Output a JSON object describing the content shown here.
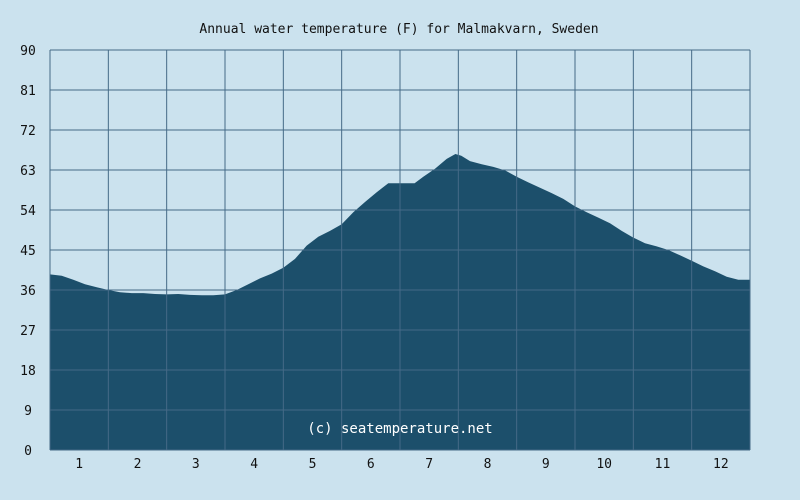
{
  "chart_data": {
    "type": "area",
    "title": "Annual water temperature (F) for Malmakvarn, Sweden",
    "xlabel": "",
    "ylabel": "",
    "categories": [
      "1",
      "2",
      "3",
      "4",
      "5",
      "6",
      "7",
      "8",
      "9",
      "10",
      "11",
      "12"
    ],
    "y_ticks": [
      "0",
      "9",
      "18",
      "27",
      "36",
      "45",
      "54",
      "63",
      "72",
      "81",
      "90"
    ],
    "ylim": [
      0,
      90
    ],
    "xlim": [
      0.5,
      12.5
    ],
    "grid": true,
    "series": [
      {
        "x": [
          0.5,
          0.7,
          0.9,
          1.1,
          1.3,
          1.5,
          1.7,
          1.9,
          2.1,
          2.3,
          2.5,
          2.7,
          2.9,
          3.1,
          3.3,
          3.5,
          3.7,
          3.9,
          4.1,
          4.3,
          4.5,
          4.7,
          4.9,
          5.1,
          5.3,
          5.5,
          5.7,
          5.9,
          6.1,
          6.3,
          6.45,
          6.75,
          6.9,
          7.1,
          7.3,
          7.45,
          7.55,
          7.7,
          7.9,
          8.1,
          8.3,
          8.5,
          8.7,
          8.9,
          9.1,
          9.3,
          9.5,
          9.7,
          9.9,
          10.1,
          10.3,
          10.5,
          10.7,
          10.9,
          11.1,
          11.3,
          11.5,
          11.7,
          11.9,
          12.1,
          12.3,
          12.5
        ],
        "values": [
          39.5,
          39.2,
          38.3,
          37.3,
          36.6,
          36.0,
          35.5,
          35.3,
          35.3,
          35.1,
          35.0,
          35.1,
          34.9,
          34.8,
          34.8,
          35.0,
          36.0,
          37.3,
          38.6,
          39.7,
          41.0,
          43.0,
          46.0,
          48.0,
          49.3,
          50.8,
          53.5,
          55.8,
          58.0,
          60.0,
          60.0,
          60.0,
          61.5,
          63.3,
          65.5,
          66.6,
          66.2,
          65.0,
          64.3,
          63.7,
          62.9,
          61.5,
          60.2,
          59.0,
          57.8,
          56.5,
          54.8,
          53.5,
          52.3,
          51.0,
          49.3,
          47.8,
          46.5,
          45.8,
          45.0,
          43.8,
          42.6,
          41.3,
          40.2,
          39.0,
          38.3,
          38.3
        ]
      }
    ],
    "colors": {
      "background": "#cbe2ee",
      "area_fill": "#1c4f6b",
      "grid": "#456a87"
    },
    "annotation": "(c) seatemperature.net"
  }
}
